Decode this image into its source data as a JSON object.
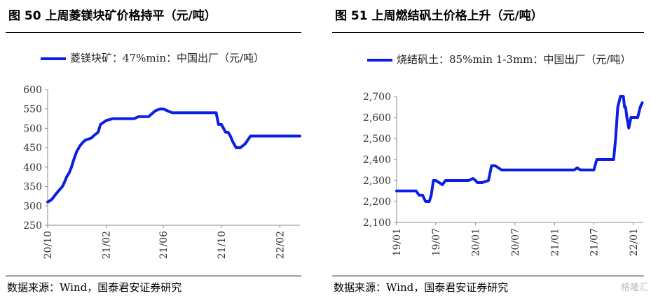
{
  "charts": [
    {
      "title": "图 50  上周菱镁块矿价格持平（元/吨）",
      "legend": "菱镁块矿：47%min：中国出厂（元/吨）",
      "source": "数据来源：Wind，国泰君安证券研究"
    },
    {
      "title": "图 51  上周燃结矾土价格上升（元/吨）",
      "legend": "烧结矾土：85%min 1-3mm：中国出厂（元/吨）",
      "source": "数据来源：Wind，国泰君安证券研究"
    }
  ],
  "watermark": "格隆汇",
  "chart_data": [
    {
      "type": "line",
      "color": "#0a1ee6",
      "ylim": [
        250,
        600
      ],
      "yticks": [
        250,
        300,
        350,
        400,
        450,
        500,
        550,
        600
      ],
      "ytick_labels": [
        "250",
        "300",
        "350",
        "400",
        "450",
        "500",
        "550",
        "600"
      ],
      "xlim": [
        "2020-10-01",
        "2022-03-15"
      ],
      "xticks": [
        "2020-10-01",
        "2021-02-01",
        "2021-06-01",
        "2021-10-01",
        "2022-02-01"
      ],
      "xtick_labels": [
        "20/10",
        "21/02",
        "21/06",
        "21/10",
        "22/02"
      ],
      "series": [
        {
          "x": [
            "2020-10-01",
            "2020-10-08",
            "2020-10-12",
            "2020-10-18",
            "2020-10-25",
            "2020-11-01",
            "2020-11-05",
            "2020-11-10",
            "2020-11-15",
            "2020-11-20",
            "2020-11-25",
            "2020-12-01",
            "2020-12-08",
            "2020-12-15",
            "2020-12-20",
            "2021-01-01",
            "2021-01-05",
            "2021-01-15",
            "2021-01-20",
            "2021-02-01",
            "2021-02-15",
            "2021-03-01",
            "2021-03-20",
            "2021-04-01",
            "2021-04-10",
            "2021-05-01",
            "2021-05-15",
            "2021-05-25",
            "2021-06-01",
            "2021-06-10",
            "2021-06-20",
            "2021-07-01",
            "2021-08-01",
            "2021-09-01",
            "2021-09-20",
            "2021-09-25",
            "2021-10-01",
            "2021-10-10",
            "2021-10-15",
            "2021-10-20",
            "2021-10-25",
            "2021-11-01",
            "2021-11-10",
            "2021-11-20",
            "2021-12-01",
            "2022-01-01",
            "2022-02-01",
            "2022-03-15"
          ],
          "y": [
            310,
            315,
            320,
            330,
            340,
            350,
            360,
            375,
            385,
            400,
            420,
            440,
            455,
            465,
            470,
            475,
            480,
            490,
            510,
            520,
            525,
            525,
            525,
            525,
            530,
            530,
            545,
            550,
            550,
            545,
            540,
            540,
            540,
            540,
            540,
            510,
            510,
            490,
            490,
            480,
            465,
            450,
            450,
            460,
            480,
            480,
            480,
            480
          ]
        }
      ]
    },
    {
      "type": "line",
      "color": "#0a1ee6",
      "ylim": [
        2100,
        2700
      ],
      "yticks": [
        2100,
        2200,
        2300,
        2400,
        2500,
        2600,
        2700
      ],
      "ytick_labels": [
        "2,100",
        "2,200",
        "2,300",
        "2,400",
        "2,500",
        "2,600",
        "2,700"
      ],
      "xlim": [
        "2019-01-01",
        "2022-02-15"
      ],
      "xticks": [
        "2019-01-01",
        "2019-07-01",
        "2020-01-01",
        "2020-07-01",
        "2021-01-01",
        "2021-07-01",
        "2022-01-01"
      ],
      "xtick_labels": [
        "19/01",
        "19/07",
        "20/01",
        "20/07",
        "21/01",
        "21/07",
        "22/01"
      ],
      "series": [
        {
          "x": [
            "2019-01-01",
            "2019-04-01",
            "2019-04-15",
            "2019-05-01",
            "2019-05-15",
            "2019-06-01",
            "2019-06-10",
            "2019-06-20",
            "2019-07-01",
            "2019-08-01",
            "2019-08-15",
            "2019-09-01",
            "2019-12-01",
            "2019-12-20",
            "2020-01-01",
            "2020-01-10",
            "2020-02-01",
            "2020-03-01",
            "2020-03-15",
            "2020-04-01",
            "2020-05-01",
            "2020-06-01",
            "2020-07-01",
            "2020-08-01",
            "2020-09-01",
            "2020-10-01",
            "2020-11-01",
            "2020-12-01",
            "2021-01-01",
            "2021-02-01",
            "2021-03-01",
            "2021-04-01",
            "2021-04-15",
            "2021-05-01",
            "2021-06-01",
            "2021-07-01",
            "2021-07-15",
            "2021-08-01",
            "2021-09-01",
            "2021-09-15",
            "2021-10-01",
            "2021-10-10",
            "2021-10-20",
            "2021-11-01",
            "2021-11-15",
            "2021-11-20",
            "2021-11-25",
            "2021-12-01",
            "2021-12-10",
            "2021-12-20",
            "2022-01-01",
            "2022-01-10",
            "2022-01-20",
            "2022-02-01",
            "2022-02-10"
          ],
          "y": [
            2250,
            2250,
            2230,
            2230,
            2200,
            2200,
            2230,
            2300,
            2300,
            2280,
            2300,
            2300,
            2300,
            2310,
            2300,
            2290,
            2290,
            2300,
            2370,
            2370,
            2350,
            2350,
            2350,
            2350,
            2350,
            2350,
            2350,
            2350,
            2350,
            2350,
            2350,
            2350,
            2360,
            2350,
            2350,
            2350,
            2400,
            2400,
            2400,
            2400,
            2400,
            2500,
            2650,
            2700,
            2700,
            2650,
            2650,
            2600,
            2550,
            2600,
            2600,
            2600,
            2600,
            2650,
            2670
          ]
        }
      ]
    }
  ]
}
